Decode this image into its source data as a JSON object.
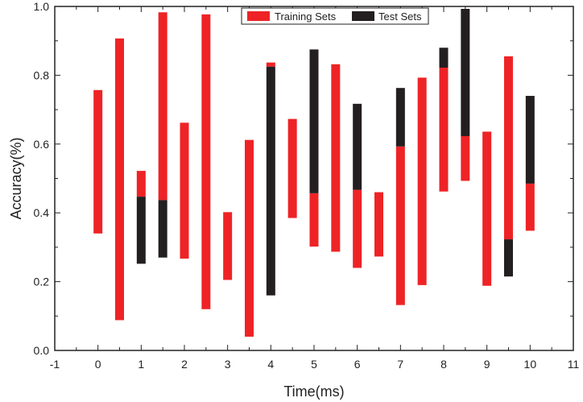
{
  "chart_data": {
    "type": "bar",
    "subtype": "floating-range",
    "title": "",
    "xlabel": "Time(ms)",
    "ylabel": "Accuracy(%)",
    "xlim": [
      -1,
      11
    ],
    "ylim": [
      0.0,
      1.0
    ],
    "x_ticks": [
      -1,
      0,
      1,
      2,
      3,
      4,
      5,
      6,
      7,
      8,
      9,
      10,
      11
    ],
    "x_tick_labels": [
      "-1",
      "0",
      "1",
      "2",
      "3",
      "4",
      "5",
      "6",
      "7",
      "8",
      "9",
      "10",
      "11"
    ],
    "y_ticks": [
      0.0,
      0.2,
      0.4,
      0.6,
      0.8,
      1.0
    ],
    "y_tick_labels": [
      "0.0",
      "0.2",
      "0.4",
      "0.6",
      "0.8",
      "1.0"
    ],
    "legend_position": "top-right",
    "series": [
      {
        "name": "Training Sets",
        "color": "#ee2326",
        "ranges": [
          {
            "x": 0.0,
            "low": 0.34,
            "high": 0.757
          },
          {
            "x": 0.5,
            "low": 0.088,
            "high": 0.907
          },
          {
            "x": 1.0,
            "low": 0.447,
            "high": 0.522
          },
          {
            "x": 1.5,
            "low": 0.437,
            "high": 0.983
          },
          {
            "x": 2.0,
            "low": 0.267,
            "high": 0.662
          },
          {
            "x": 2.5,
            "low": 0.12,
            "high": 0.977
          },
          {
            "x": 3.0,
            "low": 0.205,
            "high": 0.402
          },
          {
            "x": 3.5,
            "low": 0.04,
            "high": 0.612
          },
          {
            "x": 4.0,
            "low": 0.825,
            "high": 0.837
          },
          {
            "x": 4.5,
            "low": 0.385,
            "high": 0.673
          },
          {
            "x": 5.0,
            "low": 0.302,
            "high": 0.457
          },
          {
            "x": 5.5,
            "low": 0.287,
            "high": 0.832
          },
          {
            "x": 6.0,
            "low": 0.24,
            "high": 0.467
          },
          {
            "x": 6.5,
            "low": 0.273,
            "high": 0.46
          },
          {
            "x": 7.0,
            "low": 0.132,
            "high": 0.593
          },
          {
            "x": 7.5,
            "low": 0.19,
            "high": 0.793
          },
          {
            "x": 8.0,
            "low": 0.462,
            "high": 0.822
          },
          {
            "x": 8.5,
            "low": 0.493,
            "high": 0.623
          },
          {
            "x": 9.0,
            "low": 0.188,
            "high": 0.636
          },
          {
            "x": 9.5,
            "low": 0.323,
            "high": 0.855
          },
          {
            "x": 10.0,
            "low": 0.348,
            "high": 0.485
          }
        ]
      },
      {
        "name": "Test Sets",
        "color": "#231f20",
        "ranges": [
          {
            "x": 1.0,
            "low": 0.252,
            "high": 0.447
          },
          {
            "x": 1.5,
            "low": 0.27,
            "high": 0.437
          },
          {
            "x": 4.0,
            "low": 0.16,
            "high": 0.825
          },
          {
            "x": 5.0,
            "low": 0.457,
            "high": 0.875
          },
          {
            "x": 6.0,
            "low": 0.467,
            "high": 0.717
          },
          {
            "x": 7.0,
            "low": 0.593,
            "high": 0.763
          },
          {
            "x": 8.0,
            "low": 0.822,
            "high": 0.88
          },
          {
            "x": 8.5,
            "low": 0.623,
            "high": 0.993
          },
          {
            "x": 9.5,
            "low": 0.215,
            "high": 0.323
          },
          {
            "x": 10.0,
            "low": 0.485,
            "high": 0.74
          }
        ]
      }
    ]
  }
}
